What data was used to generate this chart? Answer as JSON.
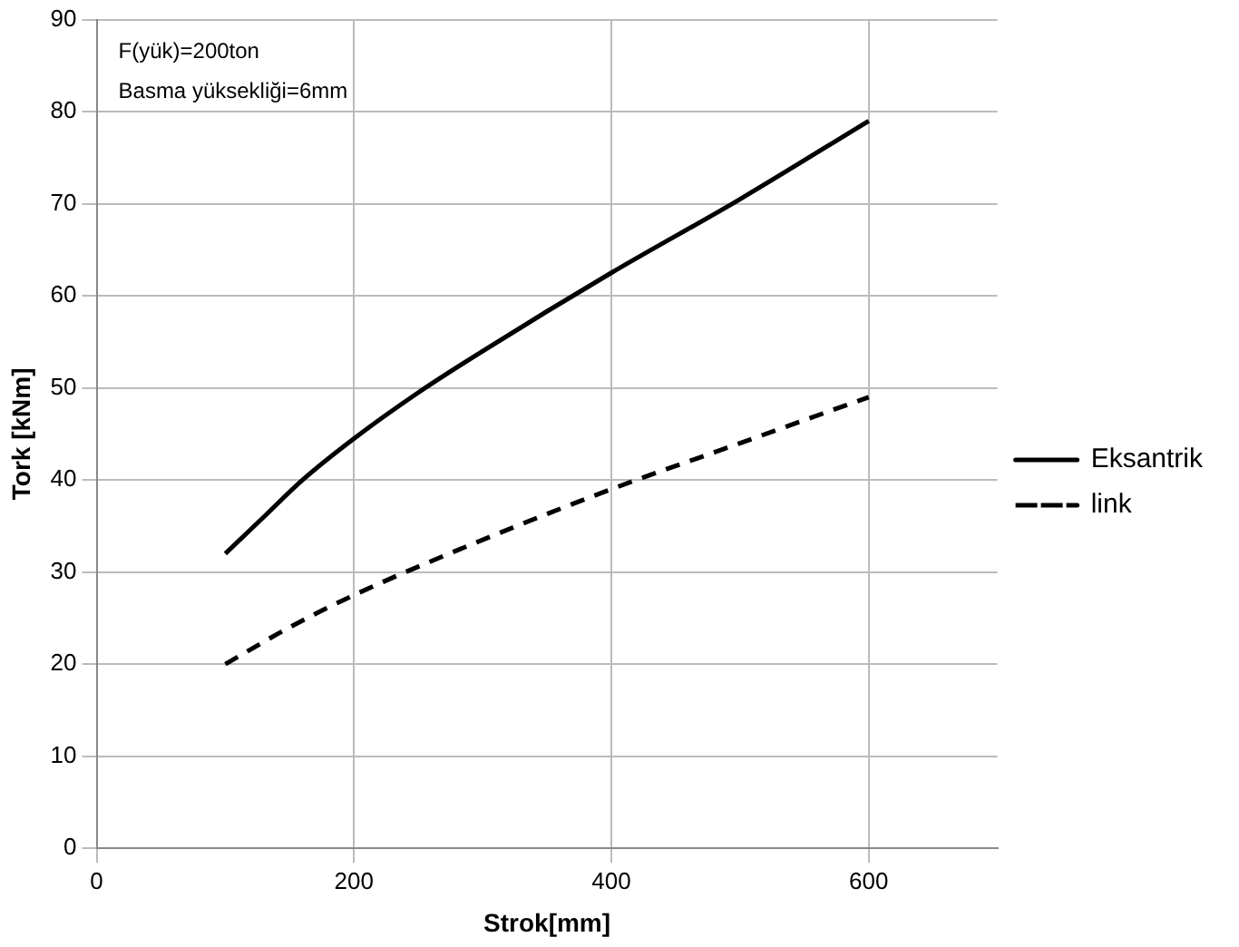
{
  "chart_data": {
    "type": "line",
    "xlabel": "Strok[mm]",
    "ylabel": "Tork [kNm]",
    "annotations": [
      "F(yük)=200ton",
      "Basma yüksekliği=6mm"
    ],
    "xlim": [
      0,
      700
    ],
    "xticks": [
      0,
      200,
      400,
      600
    ],
    "ylim": [
      0,
      90
    ],
    "yticks": [
      0,
      10,
      20,
      30,
      40,
      50,
      60,
      70,
      80,
      90
    ],
    "grid": true,
    "legend": "right",
    "marker": "none",
    "series": [
      {
        "name": "Eksantrik",
        "color": "#000000",
        "line_style": "solid",
        "x": [
          100,
          130,
          160,
          200,
          250,
          300,
          400,
          500,
          600
        ],
        "values": [
          32,
          36,
          40,
          44.5,
          49.5,
          54,
          62.5,
          70.5,
          79
        ]
      },
      {
        "name": "link",
        "color": "#000000",
        "line_style": "dashed",
        "x": [
          100,
          150,
          200,
          300,
          400,
          500,
          600
        ],
        "values": [
          20,
          24,
          27.5,
          33.5,
          39,
          44,
          49
        ]
      }
    ]
  }
}
